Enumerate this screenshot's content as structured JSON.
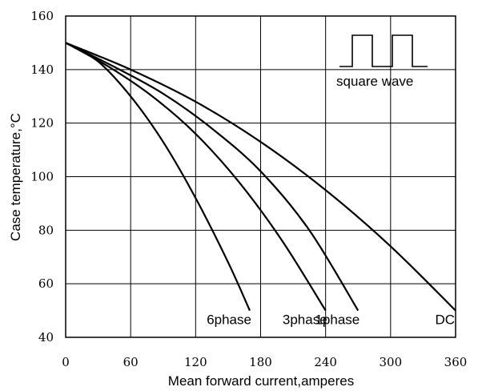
{
  "chart_data": {
    "type": "line",
    "title": "",
    "xlabel": "Mean forward current,amperes",
    "ylabel": "Case temperature,°C",
    "xlim": [
      0,
      360
    ],
    "ylim": [
      40,
      160
    ],
    "x_ticks": [
      "0",
      "60",
      "120",
      "180",
      "240",
      "300",
      "360"
    ],
    "y_ticks": [
      "40",
      "60",
      "80",
      "100",
      "120",
      "140",
      "160"
    ],
    "grid": true,
    "inset_label": "square wave",
    "series": [
      {
        "name": "6phase",
        "x": [
          0,
          30,
          60,
          90,
          120,
          150,
          170
        ],
        "y": [
          150,
          143,
          130,
          113,
          92,
          68,
          50
        ]
      },
      {
        "name": "3phase",
        "x": [
          0,
          40,
          80,
          120,
          160,
          200,
          240
        ],
        "y": [
          150,
          141,
          130,
          116,
          98,
          76,
          50
        ]
      },
      {
        "name": "1phase",
        "x": [
          0,
          45,
          90,
          135,
          180,
          225,
          270
        ],
        "y": [
          150,
          141,
          131,
          118,
          102,
          80,
          50
        ]
      },
      {
        "name": "DC",
        "x": [
          0,
          60,
          120,
          180,
          240,
          300,
          360
        ],
        "y": [
          150,
          140,
          128,
          113,
          95,
          74,
          50
        ]
      }
    ]
  }
}
